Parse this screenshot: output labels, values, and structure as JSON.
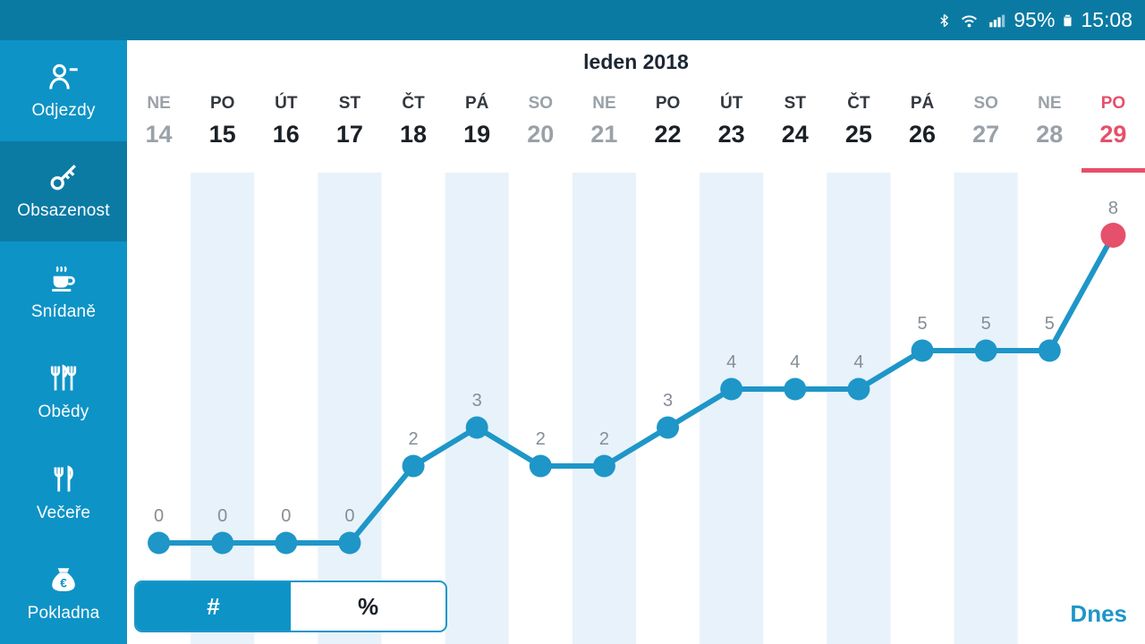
{
  "status_bar": {
    "battery_percent": "95%",
    "time": "15:08",
    "icons": [
      "bluetooth-icon",
      "wifi-icon",
      "signal-icon",
      "battery-icon"
    ]
  },
  "sidebar": {
    "items": [
      {
        "id": "odjezdy",
        "label": "Odjezdy",
        "icon": "person-departure-icon",
        "selected": false
      },
      {
        "id": "obsazenost",
        "label": "Obsazenost",
        "icon": "key-icon",
        "selected": true
      },
      {
        "id": "snidane",
        "label": "Snídaně",
        "icon": "coffee-icon",
        "selected": false
      },
      {
        "id": "obedy",
        "label": "Obědy",
        "icon": "lunch-icon",
        "selected": false
      },
      {
        "id": "vecere",
        "label": "Večeře",
        "icon": "dinner-icon",
        "selected": false
      },
      {
        "id": "pokladna",
        "label": "Pokladna",
        "icon": "money-bag-icon",
        "selected": false
      }
    ]
  },
  "main": {
    "title": "leden 2018",
    "toggle": {
      "options": [
        {
          "label": "#",
          "selected": true
        },
        {
          "label": "%",
          "selected": false
        }
      ]
    },
    "today_link": "Dnes"
  },
  "chart_data": {
    "type": "line",
    "title": "leden 2018",
    "categories": [
      {
        "day": "NE",
        "date": 14,
        "weekend": true
      },
      {
        "day": "PO",
        "date": 15,
        "weekend": false
      },
      {
        "day": "ÚT",
        "date": 16,
        "weekend": false
      },
      {
        "day": "ST",
        "date": 17,
        "weekend": false
      },
      {
        "day": "ČT",
        "date": 18,
        "weekend": false
      },
      {
        "day": "PÁ",
        "date": 19,
        "weekend": false
      },
      {
        "day": "SO",
        "date": 20,
        "weekend": true
      },
      {
        "day": "NE",
        "date": 21,
        "weekend": true
      },
      {
        "day": "PO",
        "date": 22,
        "weekend": false
      },
      {
        "day": "ÚT",
        "date": 23,
        "weekend": false
      },
      {
        "day": "ST",
        "date": 24,
        "weekend": false
      },
      {
        "day": "ČT",
        "date": 25,
        "weekend": false
      },
      {
        "day": "PÁ",
        "date": 26,
        "weekend": false
      },
      {
        "day": "SO",
        "date": 27,
        "weekend": true
      },
      {
        "day": "NE",
        "date": 28,
        "weekend": true
      },
      {
        "day": "PO",
        "date": 29,
        "weekend": false
      }
    ],
    "values": [
      0,
      0,
      0,
      0,
      2,
      3,
      2,
      2,
      3,
      4,
      4,
      4,
      5,
      5,
      5,
      8
    ],
    "today_index": 15,
    "ylim": [
      0,
      8
    ],
    "legend": "none",
    "grid": "off",
    "colors": {
      "line": "#1e96c8",
      "point": "#1e96c8",
      "today_point": "#e5506a",
      "band": "#e8f2fa",
      "value_label": "#868d95"
    }
  }
}
